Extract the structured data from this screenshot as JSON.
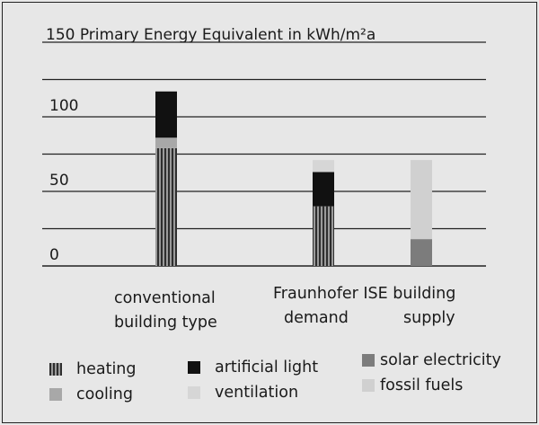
{
  "chart_data": {
    "type": "bar",
    "stacked": true,
    "title": "150 Primary Energy Equivalent in kWh/m²a",
    "ylim": [
      0,
      150
    ],
    "yticks": [
      0,
      50,
      100
    ],
    "grid": true,
    "categories": [
      [
        "conventional",
        "building type"
      ],
      [
        "Fraunhofer ISE building",
        "demand"
      ],
      [
        "",
        "supply"
      ]
    ],
    "series": [
      {
        "name": "heating",
        "color": "#555555",
        "pattern": "vertical-stripes",
        "values": [
          79,
          40,
          0
        ]
      },
      {
        "name": "cooling",
        "color": "#a8a8a8",
        "pattern": "solid",
        "values": [
          7,
          0,
          0
        ]
      },
      {
        "name": "artificial light",
        "color": "#111111",
        "pattern": "solid",
        "values": [
          31,
          23,
          0
        ]
      },
      {
        "name": "ventilation",
        "color": "#d6d6d6",
        "pattern": "solid",
        "values": [
          0,
          8,
          0
        ]
      },
      {
        "name": "solar electricity",
        "color": "#7c7c7c",
        "pattern": "solid",
        "values": [
          0,
          0,
          18
        ]
      },
      {
        "name": "fossil fuels",
        "color": "#d0d0d0",
        "pattern": "solid",
        "values": [
          0,
          0,
          53
        ]
      }
    ],
    "legend": {
      "placement": "bottom",
      "columns": [
        [
          "heating",
          "cooling"
        ],
        [
          "artificial light",
          "ventilation"
        ],
        [
          "solar electricity",
          "fossil fuels"
        ]
      ]
    }
  }
}
